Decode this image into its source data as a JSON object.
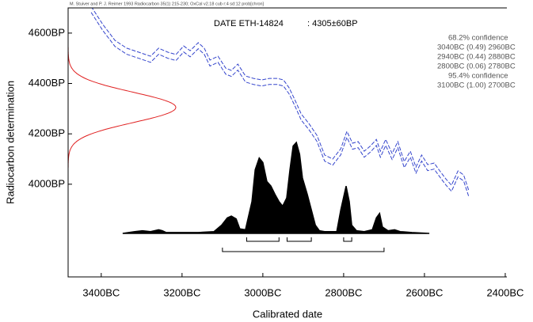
{
  "header": "M. Stuiver and P. J. Reimer 1993 Radiocarbon 35(1) 215-230; OxCal v2.18 cub r:4 sd:12 prob[chron]",
  "chart_data": {
    "type": "line",
    "title": "DATE ETH-14824",
    "subtitle": ": 4305±60BP",
    "xlabel": "Calibrated date",
    "ylabel": "Radiocarbon determination",
    "xlim": [
      3482,
      2396
    ],
    "ylim": [
      3632,
      4700
    ],
    "xticks": [
      {
        "value": 3400,
        "label": "3400BC"
      },
      {
        "value": 3200,
        "label": "3200BC"
      },
      {
        "value": 3000,
        "label": "3000BC"
      },
      {
        "value": 2800,
        "label": "2800BC"
      },
      {
        "value": 2600,
        "label": "2600BC"
      },
      {
        "value": 2400,
        "label": "2400BC"
      }
    ],
    "yticks": [
      {
        "value": 4000,
        "label": "4000BP"
      },
      {
        "value": 4200,
        "label": "4200BP"
      },
      {
        "value": 4400,
        "label": "4400BP"
      },
      {
        "value": 4600,
        "label": "4600BP"
      }
    ],
    "measurement": {
      "mean": 4305,
      "sd": 60,
      "color": "#e02020"
    },
    "calibration": {
      "color": "#3344cc",
      "x": [
        3425,
        3396,
        3366,
        3337,
        3307,
        3278,
        3258,
        3235,
        3215,
        3196,
        3180,
        3160,
        3145,
        3131,
        3111,
        3092,
        3078,
        3062,
        3043,
        3023,
        3003,
        2984,
        2964,
        2949,
        2935,
        2921,
        2905,
        2886,
        2866,
        2847,
        2827,
        2807,
        2792,
        2778,
        2764,
        2749,
        2733,
        2719,
        2709,
        2696,
        2680,
        2666,
        2650,
        2635,
        2621,
        2607,
        2592,
        2576,
        2562,
        2547,
        2533,
        2517,
        2503,
        2490
      ],
      "series": [
        {
          "values": [
            4706,
            4634,
            4571,
            4540,
            4524,
            4508,
            4540,
            4524,
            4515,
            4549,
            4530,
            4562,
            4540,
            4493,
            4508,
            4461,
            4452,
            4477,
            4430,
            4420,
            4414,
            4420,
            4420,
            4414,
            4383,
            4336,
            4279,
            4241,
            4194,
            4116,
            4100,
            4141,
            4210,
            4163,
            4169,
            4131,
            4153,
            4178,
            4131,
            4178,
            4122,
            4169,
            4090,
            4131,
            4068,
            4116,
            4078,
            4084,
            4053,
            4021,
            3996,
            4053,
            4037,
            3974
          ]
        },
        {
          "values": [
            4682,
            4610,
            4547,
            4516,
            4500,
            4484,
            4516,
            4500,
            4491,
            4525,
            4506,
            4538,
            4516,
            4469,
            4484,
            4437,
            4428,
            4453,
            4406,
            4396,
            4390,
            4396,
            4396,
            4390,
            4359,
            4312,
            4255,
            4217,
            4170,
            4092,
            4076,
            4117,
            4186,
            4139,
            4145,
            4107,
            4129,
            4154,
            4107,
            4154,
            4098,
            4145,
            4066,
            4107,
            4044,
            4092,
            4054,
            4060,
            4029,
            3997,
            3972,
            4029,
            4013,
            3950
          ]
        }
      ]
    },
    "probability": {
      "color": "#000000",
      "x": [
        3347,
        3317,
        3298,
        3278,
        3258,
        3249,
        3239,
        3200,
        3160,
        3121,
        3102,
        3088,
        3078,
        3066,
        3057,
        3043,
        3027,
        3019,
        3009,
        3000,
        2990,
        2980,
        2970,
        2960,
        2951,
        2941,
        2933,
        2925,
        2917,
        2909,
        2902,
        2890,
        2880,
        2870,
        2860,
        2847,
        2817,
        2807,
        2794,
        2786,
        2780,
        2768,
        2749,
        2729,
        2719,
        2711,
        2704,
        2690,
        2674,
        2660,
        2631,
        2588
      ],
      "values": [
        0,
        0.02,
        0.03,
        0.02,
        0.04,
        0.03,
        0.01,
        0.01,
        0.01,
        0.02,
        0.09,
        0.17,
        0.19,
        0.16,
        0.05,
        0.04,
        0.35,
        0.7,
        0.83,
        0.78,
        0.57,
        0.52,
        0.43,
        0.35,
        0.3,
        0.39,
        0.7,
        0.96,
        1,
        0.87,
        0.61,
        0.43,
        0.26,
        0.09,
        0.03,
        0.02,
        0.02,
        0.26,
        0.52,
        0.35,
        0.09,
        0.03,
        0.02,
        0.04,
        0.17,
        0.22,
        0.07,
        0.03,
        0.04,
        0.02,
        0.01,
        0
      ]
    },
    "confidence": [
      {
        "label": "68.2% confidence",
        "ranges": [
          {
            "from": 3040,
            "to": 2960,
            "prob": 0.49,
            "label": "3040BC (0.49) 2960BC"
          },
          {
            "from": 2940,
            "to": 2880,
            "prob": 0.44,
            "label": "2940BC (0.44) 2880BC"
          },
          {
            "from": 2800,
            "to": 2780,
            "prob": 0.06,
            "label": "2800BC (0.06) 2780BC"
          }
        ]
      },
      {
        "label": "95.4% confidence",
        "ranges": [
          {
            "from": 3100,
            "to": 2700,
            "prob": 1.0,
            "label": "3100BC (1.00) 2700BC"
          }
        ]
      }
    ]
  }
}
